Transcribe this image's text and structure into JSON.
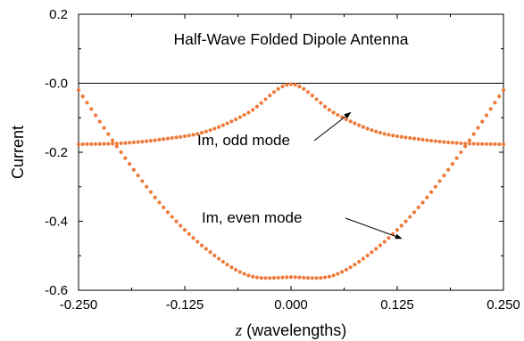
{
  "chart_data": {
    "type": "scatter",
    "title": "Half-Wave Folded Dipole Antenna",
    "xlabel_var": "z",
    "xlabel_rest": " (wavelengths)",
    "ylabel": "Current",
    "xlim": [
      -0.25,
      0.25
    ],
    "ylim": [
      -0.6,
      0.2
    ],
    "x_ticks": [
      -0.25,
      -0.125,
      0.0,
      0.125,
      0.25
    ],
    "x_tick_labels": [
      "-0.250",
      "-0.125",
      "0.000",
      "0.125",
      "0.250"
    ],
    "y_ticks": [
      0.2,
      0.0,
      -0.2,
      -0.4,
      -0.6
    ],
    "y_tick_labels": [
      "0.2",
      "-0.0",
      "-0.2",
      "-0.4",
      "-0.6"
    ],
    "zero_line": true,
    "grid": false,
    "marker_color": "#ee7a3a",
    "series": [
      {
        "name": "Im, odd mode",
        "x": [
          -0.25,
          -0.2,
          -0.15,
          -0.1,
          -0.05,
          0.0,
          0.05,
          0.1,
          0.15,
          0.2,
          0.25
        ],
        "y": [
          -0.177,
          -0.174,
          -0.162,
          -0.14,
          -0.085,
          -0.003,
          -0.085,
          -0.14,
          -0.162,
          -0.174,
          -0.177
        ]
      },
      {
        "name": "Im, even mode",
        "x": [
          -0.25,
          -0.2,
          -0.15,
          -0.1,
          -0.05,
          0.0,
          0.05,
          0.1,
          0.15,
          0.2,
          0.25
        ],
        "y": [
          -0.02,
          -0.2,
          -0.36,
          -0.48,
          -0.557,
          -0.562,
          -0.557,
          -0.48,
          -0.36,
          -0.2,
          -0.02
        ]
      }
    ],
    "annotations": [
      {
        "text": "Im, odd mode",
        "series": "Im, odd mode",
        "x": 0.07,
        "y": -0.085
      },
      {
        "text": "Im, even mode",
        "series": "Im, even mode",
        "x": 0.13,
        "y": -0.45
      }
    ]
  }
}
